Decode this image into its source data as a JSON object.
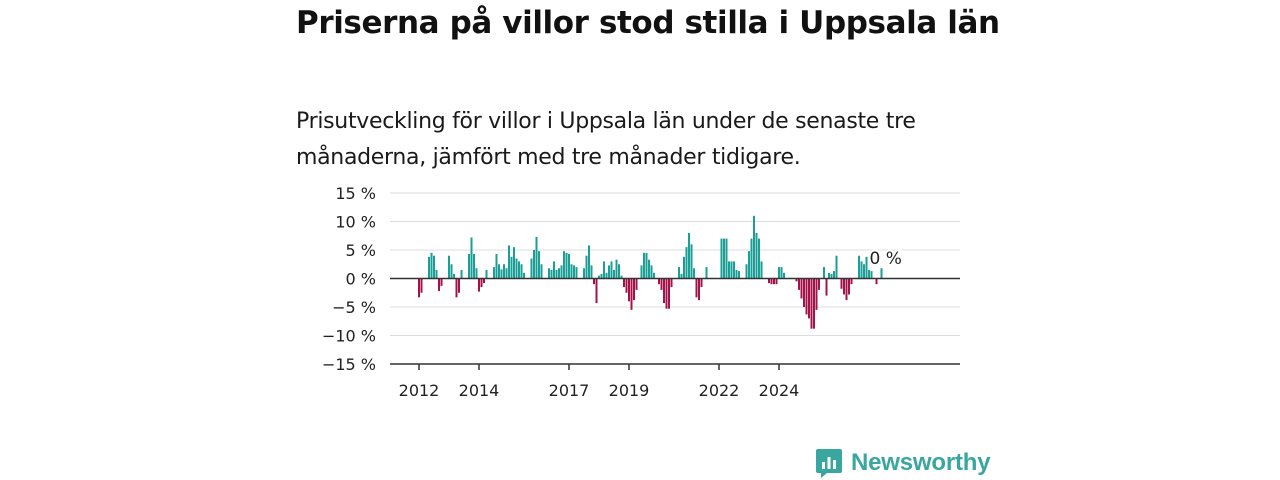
{
  "title": "Priserna på villor stod stilla i Uppsala län",
  "subtitle": "Prisutveckling för villor i Uppsala län under de senaste tre månaderna, jämfört med tre månader tidigare.",
  "brand": {
    "name": "Newsworthy",
    "color": "#3aa6a0"
  },
  "chart_data": {
    "type": "bar",
    "ylim": [
      -15,
      15
    ],
    "yticks": [
      "15 %",
      "10 %",
      "5 %",
      "0 %",
      "−5 %",
      "−10 %",
      "−15 %"
    ],
    "ytick_values": [
      15,
      10,
      5,
      0,
      -5,
      -10,
      -15
    ],
    "xticks": [
      "2012",
      "2014",
      "2017",
      "2019",
      "2022",
      "2024"
    ],
    "xtick_years": [
      2012,
      2014,
      2017,
      2019,
      2022,
      2024
    ],
    "start_year": 2012,
    "start_month": 1,
    "grid": true,
    "colors": {
      "positive": "#1a9e96",
      "negative": "#a3134a",
      "grid": "#dddddd",
      "axis": "#333333"
    },
    "annotation": "0 %",
    "values": [
      -3.3,
      -2.5,
      0,
      0,
      3.8,
      4.5,
      4.0,
      1.5,
      -2.2,
      -1.3,
      0,
      0,
      4.0,
      2.5,
      0.8,
      -3.3,
      -2.5,
      1.5,
      0,
      0,
      4.3,
      7.2,
      4.3,
      1.8,
      -2.3,
      -1.5,
      -0.8,
      1.5,
      0,
      0,
      2.0,
      4.3,
      2.5,
      1.6,
      2.5,
      1.8,
      5.8,
      3.8,
      5.5,
      3.5,
      3.0,
      2.5,
      1.0,
      0,
      0,
      3.5,
      5.0,
      7.3,
      4.8,
      2.5,
      0,
      0,
      1.8,
      1.5,
      3.0,
      1.5,
      1.8,
      2.3,
      4.8,
      4.5,
      4.3,
      2.5,
      2.3,
      2.0,
      0,
      0,
      1.8,
      4.0,
      5.8,
      2.3,
      -1.0,
      -4.3,
      0.5,
      0.8,
      3.0,
      1.0,
      2.3,
      3.0,
      1.5,
      3.3,
      2.5,
      0.5,
      -1.5,
      -2.5,
      -4.0,
      -5.5,
      -3.8,
      -2.0,
      0,
      2.3,
      4.5,
      4.5,
      3.3,
      2.3,
      1.0,
      0,
      -1.0,
      -2.0,
      -4.3,
      -5.3,
      -5.3,
      -1.5,
      0,
      0,
      2.0,
      0.8,
      3.8,
      5.5,
      8.0,
      6.0,
      1.8,
      -3.3,
      -3.8,
      -1.5,
      0,
      2.0,
      0,
      0,
      0,
      0,
      0,
      7.0,
      7.0,
      7.0,
      3.0,
      3.0,
      3.0,
      1.5,
      1.3,
      0,
      0,
      2.5,
      4.8,
      7.0,
      11.0,
      8.0,
      7.0,
      3.0,
      0,
      0,
      -0.8,
      -1.0,
      -1.0,
      -1.0,
      2.0,
      2.0,
      1.0,
      0,
      0,
      0,
      0,
      -0.5,
      -2.0,
      -3.5,
      -5.0,
      -6.3,
      -7.0,
      -8.8,
      -8.8,
      -5.5,
      -2.0,
      0,
      2.0,
      -3.0,
      1.0,
      0.8,
      1.3,
      4.0,
      0,
      -1.8,
      -2.8,
      -3.8,
      -2.8,
      -1.0,
      0,
      0,
      4.0,
      3.0,
      2.5,
      3.8,
      1.5,
      1.3,
      0,
      -1.0,
      0,
      1.8
    ]
  }
}
